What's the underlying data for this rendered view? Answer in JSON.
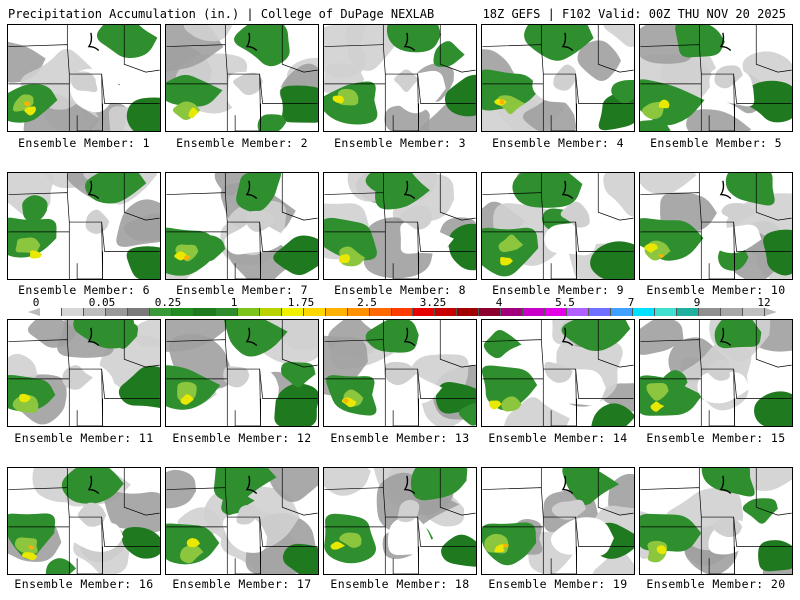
{
  "header": {
    "title": "Precipitation Accumulation (in.) | College of DuPage NEXLAB",
    "run": "18Z GEFS | F102 Valid: 00Z THU NOV 20 2025"
  },
  "members": [
    {
      "label": "Ensemble Member: 1"
    },
    {
      "label": "Ensemble Member: 2"
    },
    {
      "label": "Ensemble Member: 3"
    },
    {
      "label": "Ensemble Member: 4"
    },
    {
      "label": "Ensemble Member: 5"
    },
    {
      "label": "Ensemble Member: 6"
    },
    {
      "label": "Ensemble Member: 7"
    },
    {
      "label": "Ensemble Member: 8"
    },
    {
      "label": "Ensemble Member: 9"
    },
    {
      "label": "Ensemble Member: 10"
    },
    {
      "label": "Ensemble Member: 11"
    },
    {
      "label": "Ensemble Member: 12"
    },
    {
      "label": "Ensemble Member: 13"
    },
    {
      "label": "Ensemble Member: 14"
    },
    {
      "label": "Ensemble Member: 15"
    },
    {
      "label": "Ensemble Member: 16"
    },
    {
      "label": "Ensemble Member: 17"
    },
    {
      "label": "Ensemble Member: 18"
    },
    {
      "label": "Ensemble Member: 19"
    },
    {
      "label": "Ensemble Member: 20"
    }
  ],
  "scale": {
    "ticks": [
      "0",
      "0.05",
      "0.25",
      "1",
      "1.75",
      "2.5",
      "3.25",
      "4",
      "5.5",
      "7",
      "9",
      "12"
    ],
    "colors": [
      "#ffffff",
      "#d6d6d6",
      "#bdbdbd",
      "#9a9a9a",
      "#7a7a7a",
      "#3a9a3a",
      "#228b22",
      "#1f7a1f",
      "#2e8b2e",
      "#7dc31e",
      "#b8d400",
      "#f0f000",
      "#ffd700",
      "#ffb000",
      "#ff9000",
      "#ff6a00",
      "#ff3c00",
      "#e60000",
      "#c80000",
      "#a00000",
      "#8b0030",
      "#a0007a",
      "#c800c8",
      "#e600e6",
      "#b060ff",
      "#7070ff",
      "#40a0ff",
      "#00e0ff",
      "#40e0d0",
      "#20b0a0",
      "#909090",
      "#a8a8a8",
      "#c0c0c0"
    ]
  },
  "palette": {
    "white": "#ffffff",
    "lightgray": "#d0d0d0",
    "gray": "#a0a0a0",
    "darkgray": "#7a7a7a",
    "green": "#2f8f2f",
    "darkgreen": "#1f7a1f",
    "lime": "#8cc63f",
    "yellow": "#e8e800",
    "orange": "#ffb000"
  }
}
